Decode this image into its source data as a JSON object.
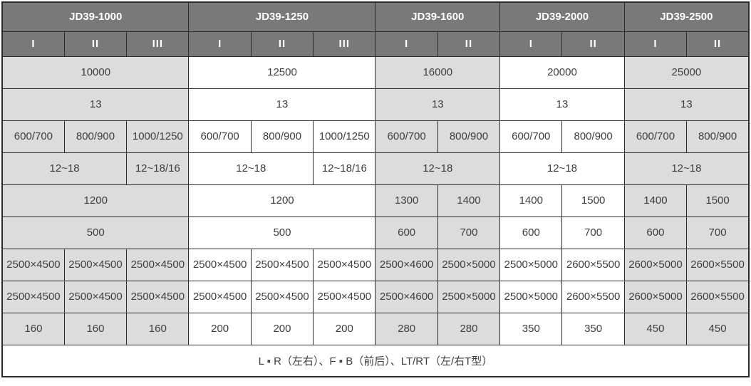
{
  "colors": {
    "header_bg": "#797979",
    "header_text": "#ffffff",
    "shaded_cell_bg": "#dcdcdc",
    "plain_cell_bg": "#ffffff",
    "border": "#2b2b2b",
    "cell_text": "#3d3d3d"
  },
  "chart_data": {
    "type": "table",
    "title": "",
    "column_groups": [
      {
        "label": "JD39-1000",
        "subcols": [
          "I",
          "II",
          "III"
        ],
        "shaded": true
      },
      {
        "label": "JD39-1250",
        "subcols": [
          "I",
          "II",
          "III"
        ],
        "shaded": false
      },
      {
        "label": "JD39-1600",
        "subcols": [
          "I",
          "II"
        ],
        "shaded": true
      },
      {
        "label": "JD39-2000",
        "subcols": [
          "I",
          "II"
        ],
        "shaded": false
      },
      {
        "label": "JD39-2500",
        "subcols": [
          "I",
          "II"
        ],
        "shaded": true
      }
    ],
    "total_columns": 12,
    "rows": [
      [
        {
          "t": "10000",
          "s": 3,
          "g": 0
        },
        {
          "t": "12500",
          "s": 3,
          "g": 1
        },
        {
          "t": "16000",
          "s": 2,
          "g": 2
        },
        {
          "t": "20000",
          "s": 2,
          "g": 3
        },
        {
          "t": "25000",
          "s": 2,
          "g": 4
        }
      ],
      [
        {
          "t": "13",
          "s": 3,
          "g": 0
        },
        {
          "t": "13",
          "s": 3,
          "g": 1
        },
        {
          "t": "13",
          "s": 2,
          "g": 2
        },
        {
          "t": "13",
          "s": 2,
          "g": 3
        },
        {
          "t": "13",
          "s": 2,
          "g": 4
        }
      ],
      [
        {
          "t": "600/700",
          "s": 1,
          "g": 0
        },
        {
          "t": "800/900",
          "s": 1,
          "g": 0
        },
        {
          "t": "1000/1250",
          "s": 1,
          "g": 0
        },
        {
          "t": "600/700",
          "s": 1,
          "g": 1
        },
        {
          "t": "800/900",
          "s": 1,
          "g": 1
        },
        {
          "t": "1000/1250",
          "s": 1,
          "g": 1
        },
        {
          "t": "600/700",
          "s": 1,
          "g": 2
        },
        {
          "t": "800/900",
          "s": 1,
          "g": 2
        },
        {
          "t": "600/700",
          "s": 1,
          "g": 3
        },
        {
          "t": "800/900",
          "s": 1,
          "g": 3
        },
        {
          "t": "600/700",
          "s": 1,
          "g": 4
        },
        {
          "t": "800/900",
          "s": 1,
          "g": 4
        }
      ],
      [
        {
          "t": "12~18",
          "s": 2,
          "g": 0
        },
        {
          "t": "12~18/16",
          "s": 1,
          "g": 0
        },
        {
          "t": "12~18",
          "s": 2,
          "g": 1
        },
        {
          "t": "12~18/16",
          "s": 1,
          "g": 1
        },
        {
          "t": "12~18",
          "s": 2,
          "g": 2
        },
        {
          "t": "12~18",
          "s": 2,
          "g": 3
        },
        {
          "t": "12~18",
          "s": 2,
          "g": 4
        }
      ],
      [
        {
          "t": "1200",
          "s": 3,
          "g": 0
        },
        {
          "t": "1200",
          "s": 3,
          "g": 1
        },
        {
          "t": "1300",
          "s": 1,
          "g": 2
        },
        {
          "t": "1400",
          "s": 1,
          "g": 2
        },
        {
          "t": "1400",
          "s": 1,
          "g": 3
        },
        {
          "t": "1500",
          "s": 1,
          "g": 3
        },
        {
          "t": "1400",
          "s": 1,
          "g": 4
        },
        {
          "t": "1500",
          "s": 1,
          "g": 4
        }
      ],
      [
        {
          "t": "500",
          "s": 3,
          "g": 0
        },
        {
          "t": "500",
          "s": 3,
          "g": 1
        },
        {
          "t": "600",
          "s": 1,
          "g": 2
        },
        {
          "t": "700",
          "s": 1,
          "g": 2
        },
        {
          "t": "600",
          "s": 1,
          "g": 3
        },
        {
          "t": "700",
          "s": 1,
          "g": 3
        },
        {
          "t": "600",
          "s": 1,
          "g": 4
        },
        {
          "t": "700",
          "s": 1,
          "g": 4
        }
      ],
      [
        {
          "t": "2500×4500",
          "s": 1,
          "g": 0
        },
        {
          "t": "2500×4500",
          "s": 1,
          "g": 0
        },
        {
          "t": "2500×4500",
          "s": 1,
          "g": 0
        },
        {
          "t": "2500×4500",
          "s": 1,
          "g": 1
        },
        {
          "t": "2500×4500",
          "s": 1,
          "g": 1
        },
        {
          "t": "2500×4500",
          "s": 1,
          "g": 1
        },
        {
          "t": "2500×4600",
          "s": 1,
          "g": 2
        },
        {
          "t": "2500×5000",
          "s": 1,
          "g": 2
        },
        {
          "t": "2500×5000",
          "s": 1,
          "g": 3
        },
        {
          "t": "2600×5500",
          "s": 1,
          "g": 3
        },
        {
          "t": "2600×5000",
          "s": 1,
          "g": 4
        },
        {
          "t": "2600×5500",
          "s": 1,
          "g": 4
        }
      ],
      [
        {
          "t": "2500×4500",
          "s": 1,
          "g": 0
        },
        {
          "t": "2500×4500",
          "s": 1,
          "g": 0
        },
        {
          "t": "2500×4500",
          "s": 1,
          "g": 0
        },
        {
          "t": "2500×4500",
          "s": 1,
          "g": 1
        },
        {
          "t": "2500×4500",
          "s": 1,
          "g": 1
        },
        {
          "t": "2500×4500",
          "s": 1,
          "g": 1
        },
        {
          "t": "2500×4600",
          "s": 1,
          "g": 2
        },
        {
          "t": "2500×5000",
          "s": 1,
          "g": 2
        },
        {
          "t": "2500×5000",
          "s": 1,
          "g": 3
        },
        {
          "t": "2600×5500",
          "s": 1,
          "g": 3
        },
        {
          "t": "2600×5000",
          "s": 1,
          "g": 4
        },
        {
          "t": "2600×5500",
          "s": 1,
          "g": 4
        }
      ],
      [
        {
          "t": "160",
          "s": 1,
          "g": 0
        },
        {
          "t": "160",
          "s": 1,
          "g": 0
        },
        {
          "t": "160",
          "s": 1,
          "g": 0
        },
        {
          "t": "200",
          "s": 1,
          "g": 1
        },
        {
          "t": "200",
          "s": 1,
          "g": 1
        },
        {
          "t": "200",
          "s": 1,
          "g": 1
        },
        {
          "t": "280",
          "s": 1,
          "g": 2
        },
        {
          "t": "280",
          "s": 1,
          "g": 2
        },
        {
          "t": "350",
          "s": 1,
          "g": 3
        },
        {
          "t": "350",
          "s": 1,
          "g": 3
        },
        {
          "t": "450",
          "s": 1,
          "g": 4
        },
        {
          "t": "450",
          "s": 1,
          "g": 4
        }
      ]
    ],
    "footer_note": "L ▪ R（左右）、F ▪ B（前后）、LT/RT（左/右T型）"
  }
}
